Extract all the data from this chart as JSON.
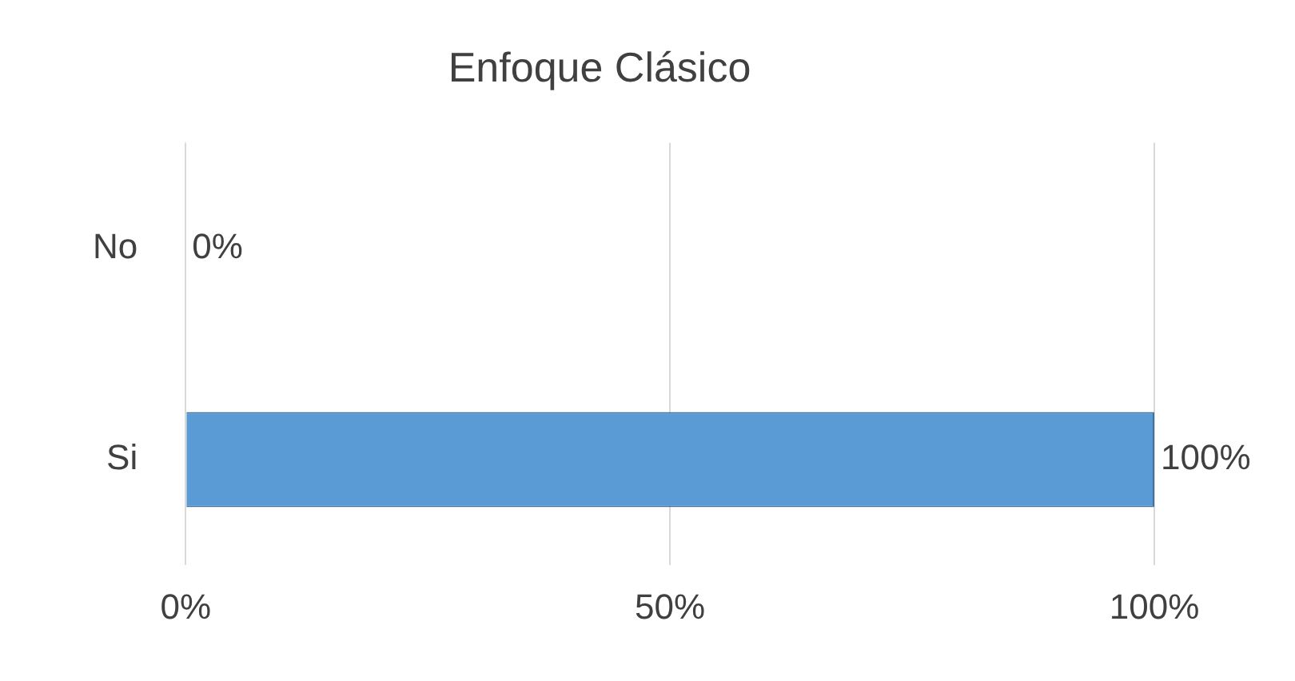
{
  "chart_data": {
    "type": "bar",
    "title": "Enfoque Clásico",
    "orientation": "horizontal",
    "categories": [
      "No",
      "Si"
    ],
    "values": [
      0,
      100
    ],
    "color": "#5b9bd5",
    "value_labels": [
      "0%",
      "100%"
    ],
    "xlim": [
      0,
      100
    ],
    "xticks": [
      {
        "value": 0,
        "label": "0%"
      },
      {
        "value": 50,
        "label": "50%"
      },
      {
        "value": 100,
        "label": "100%"
      }
    ],
    "grid": "x",
    "legend": false
  }
}
